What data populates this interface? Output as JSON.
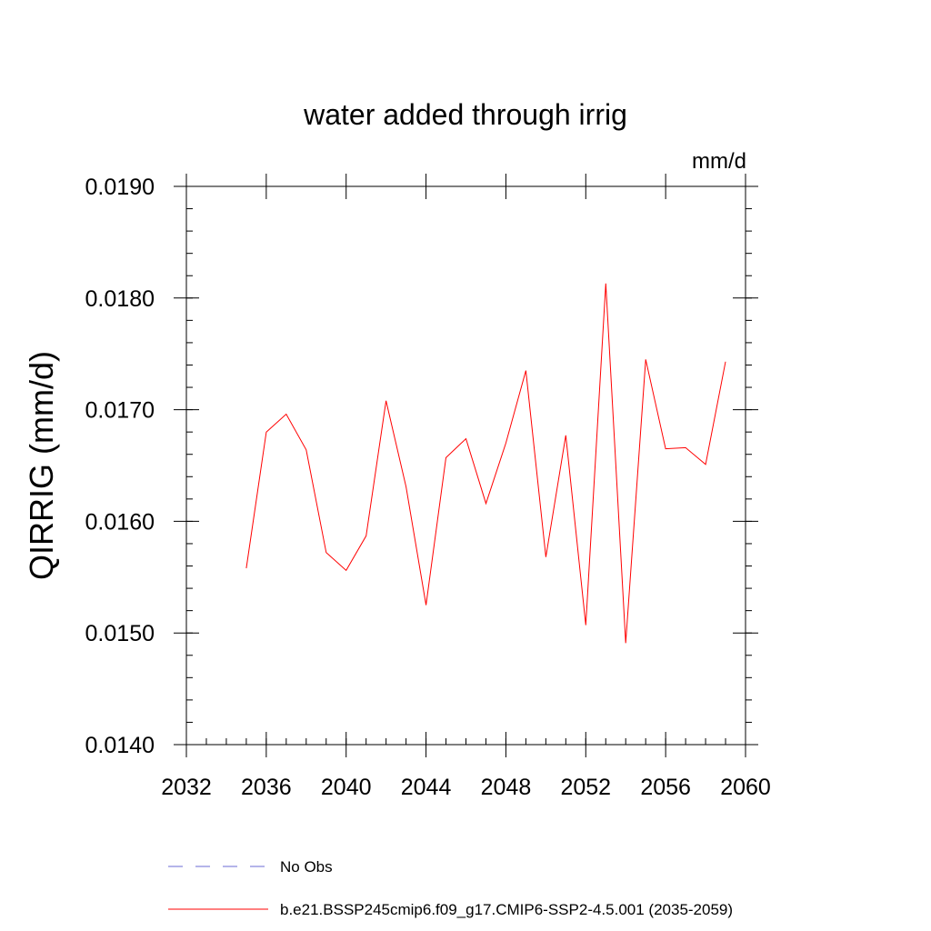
{
  "chart_data": {
    "type": "line",
    "title": "water added through irrig",
    "units_label": "mm/d",
    "ylabel": "QIRRIG  (mm/d)",
    "xlabel": "",
    "xlim": [
      2032,
      2060
    ],
    "ylim": [
      0.014,
      0.019
    ],
    "x_ticks": [
      2032,
      2036,
      2040,
      2044,
      2048,
      2052,
      2056,
      2060
    ],
    "x_tick_labels": [
      "2032",
      "2036",
      "2040",
      "2044",
      "2048",
      "2052",
      "2056",
      "2060"
    ],
    "y_ticks": [
      0.014,
      0.015,
      0.016,
      0.017,
      0.018,
      0.019
    ],
    "y_tick_labels": [
      "0.0140",
      "0.0150",
      "0.0160",
      "0.0170",
      "0.0180",
      "0.0190"
    ],
    "grid": false,
    "legend_placement": "bottom",
    "series": [
      {
        "name": "b.e21.BSSP245cmip6.f09_g17.CMIP6-SSP2-4.5.001 (2035-2059)",
        "color": "#ff0000",
        "style": "solid",
        "x": [
          2035,
          2036,
          2037,
          2038,
          2039,
          2040,
          2041,
          2042,
          2043,
          2044,
          2045,
          2046,
          2047,
          2048,
          2049,
          2050,
          2051,
          2052,
          2053,
          2054,
          2055,
          2056,
          2057,
          2058,
          2059
        ],
        "values": [
          0.01558,
          0.0168,
          0.01696,
          0.01664,
          0.01572,
          0.01556,
          0.01587,
          0.01708,
          0.01631,
          0.01525,
          0.01657,
          0.01674,
          0.01616,
          0.0167,
          0.01735,
          0.01568,
          0.01677,
          0.01507,
          0.01813,
          0.01491,
          0.01745,
          0.01665,
          0.01666,
          0.01651,
          0.01743
        ]
      }
    ],
    "legend": [
      {
        "label": "No Obs",
        "color": "#6b6bd6",
        "style": "dashed"
      },
      {
        "label": "b.e21.BSSP245cmip6.f09_g17.CMIP6-SSP2-4.5.001 (2035-2059)",
        "color": "#ff0000",
        "style": "solid"
      }
    ]
  }
}
